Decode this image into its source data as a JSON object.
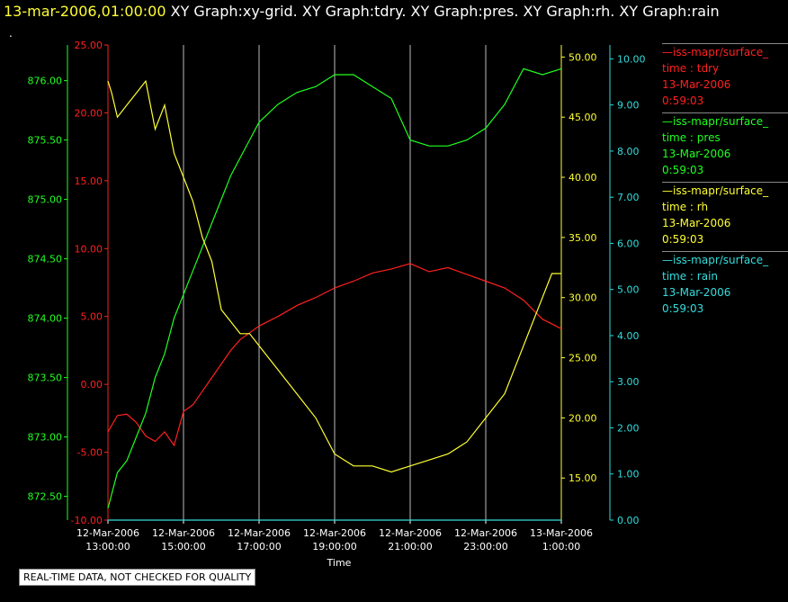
{
  "header": {
    "datetime": "13-mar-2006,01:00:00",
    "graphs": "XY Graph:xy-grid.  XY Graph:tdry.  XY Graph:pres.  XY Graph:rh.  XY Graph:rain"
  },
  "dot": ".",
  "qc_label": "REAL-TIME DATA, NOT CHECKED FOR QUALITY",
  "legend": [
    {
      "line1": "—iss-mapr/surface_",
      "line2": "time : tdry",
      "line3": "13-Mar-2006",
      "line4": "0:59:03",
      "color": "#ff2020"
    },
    {
      "line1": "—iss-mapr/surface_",
      "line2": "time : pres",
      "line3": "13-Mar-2006",
      "line4": "0:59:03",
      "color": "#20ff20"
    },
    {
      "line1": "—iss-mapr/surface_",
      "line2": "time : rh",
      "line3": "13-Mar-2006",
      "line4": "0:59:03",
      "color": "#ffff33"
    },
    {
      "line1": "—iss-mapr/surface_",
      "line2": "time : rain",
      "line3": "13-Mar-2006",
      "line4": "0:59:03",
      "color": "#33dddd"
    }
  ],
  "chart_data": {
    "type": "line",
    "xlabel": "Time",
    "x_ticks": [
      {
        "date": "12-Mar-2006",
        "time": "13:00:00",
        "hour": 0
      },
      {
        "date": "12-Mar-2006",
        "time": "15:00:00",
        "hour": 2
      },
      {
        "date": "12-Mar-2006",
        "time": "17:00:00",
        "hour": 4
      },
      {
        "date": "12-Mar-2006",
        "time": "19:00:00",
        "hour": 6
      },
      {
        "date": "12-Mar-2006",
        "time": "21:00:00",
        "hour": 8
      },
      {
        "date": "12-Mar-2006",
        "time": "23:00:00",
        "hour": 10
      },
      {
        "date": "13-Mar-2006",
        "time": "1:00:00",
        "hour": 12
      }
    ],
    "grid": true,
    "axes": [
      {
        "name": "pres",
        "color": "#20ff20",
        "side": "left-outer",
        "ylim": [
          872.3,
          876.3
        ],
        "ticks": [
          "872.50",
          "873.00",
          "873.50",
          "874.00",
          "874.50",
          "875.00",
          "875.50",
          "876.00"
        ]
      },
      {
        "name": "tdry",
        "color": "#ff2020",
        "side": "left-inner",
        "ylim": [
          -10,
          25
        ],
        "ticks": [
          "-10.00",
          "-5.00",
          "0.00",
          "5.00",
          "10.00",
          "15.00",
          "20.00",
          "25.00"
        ]
      },
      {
        "name": "rh",
        "color": "#ffff33",
        "side": "right-inner",
        "ylim": [
          11.5,
          51
        ],
        "ticks": [
          "15.00",
          "20.00",
          "25.00",
          "30.00",
          "35.00",
          "40.00",
          "45.00",
          "50.00"
        ]
      },
      {
        "name": "rain",
        "color": "#33dddd",
        "side": "right-outer",
        "ylim": [
          0,
          10.3
        ],
        "ticks": [
          "0.00",
          "1.00",
          "2.00",
          "3.00",
          "4.00",
          "5.00",
          "6.00",
          "7.00",
          "8.00",
          "9.00",
          "10.00"
        ]
      }
    ],
    "series": [
      {
        "name": "tdry",
        "axis": 1,
        "color": "#ff2020",
        "x": [
          0,
          0.25,
          0.5,
          0.75,
          1,
          1.25,
          1.5,
          1.75,
          2,
          2.25,
          2.5,
          2.75,
          3,
          3.25,
          3.5,
          3.75,
          4,
          4.5,
          5,
          5.5,
          6,
          6.5,
          7,
          7.5,
          8,
          8.5,
          9,
          9.5,
          10,
          10.5,
          11,
          11.5,
          12
        ],
        "values": [
          -3.5,
          -2.3,
          -2.2,
          -2.8,
          -3.8,
          -4.2,
          -3.5,
          -4.5,
          -2.0,
          -1.5,
          -0.5,
          0.5,
          1.5,
          2.5,
          3.3,
          3.8,
          4.3,
          5.0,
          5.8,
          6.4,
          7.1,
          7.6,
          8.2,
          8.5,
          8.9,
          8.3,
          8.6,
          8.1,
          7.6,
          7.1,
          6.2,
          4.8,
          4.1
        ]
      },
      {
        "name": "pres",
        "axis": 0,
        "color": "#20ff20",
        "x": [
          0,
          0.25,
          0.5,
          0.75,
          1,
          1.25,
          1.5,
          1.75,
          2,
          2.25,
          2.5,
          2.75,
          3,
          3.25,
          3.5,
          3.75,
          4,
          4.5,
          5,
          5.5,
          6,
          6.5,
          7,
          7.5,
          8,
          8.5,
          9,
          9.5,
          10,
          10.5,
          11,
          11.5,
          12
        ],
        "values": [
          872.4,
          872.7,
          872.8,
          873.0,
          873.2,
          873.5,
          873.7,
          874.0,
          874.2,
          874.4,
          874.6,
          874.8,
          875.0,
          875.2,
          875.35,
          875.5,
          875.65,
          875.8,
          875.9,
          875.95,
          876.05,
          876.05,
          875.95,
          875.85,
          875.5,
          875.45,
          875.45,
          875.5,
          875.6,
          875.8,
          876.1,
          876.05,
          876.1
        ]
      },
      {
        "name": "rh",
        "axis": 2,
        "color": "#ffff33",
        "x": [
          0,
          0.1,
          0.25,
          0.5,
          0.75,
          1,
          1.25,
          1.5,
          1.75,
          2,
          2.25,
          2.5,
          2.75,
          3,
          3.25,
          3.5,
          3.75,
          4,
          4.5,
          5,
          5.5,
          6,
          6.5,
          7,
          7.5,
          8,
          8.5,
          9,
          9.5,
          10,
          10.5,
          11,
          11.5,
          11.75,
          12
        ],
        "values": [
          48,
          47,
          45,
          46,
          47,
          48,
          44,
          46,
          42,
          40,
          38,
          35,
          33,
          29,
          28,
          27,
          27,
          26,
          24,
          22,
          20,
          17,
          16,
          16,
          15.5,
          16,
          16.5,
          17,
          18,
          20,
          22,
          26,
          30,
          32,
          32
        ]
      },
      {
        "name": "rain",
        "axis": 3,
        "color": "#33dddd",
        "x": [
          0,
          12
        ],
        "values": [
          0,
          0
        ]
      }
    ]
  }
}
